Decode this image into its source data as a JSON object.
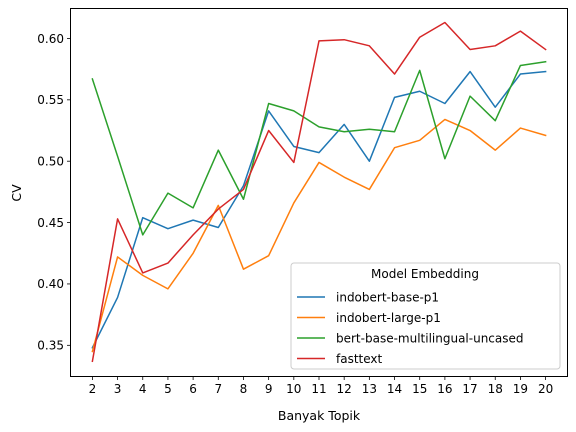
{
  "chart_data": {
    "type": "line",
    "xlabel": "Banyak Topik",
    "ylabel": "CV",
    "x": [
      2,
      3,
      4,
      5,
      6,
      7,
      8,
      9,
      10,
      11,
      12,
      13,
      14,
      15,
      16,
      17,
      18,
      19,
      20
    ],
    "xlim": [
      1.15,
      20.85
    ],
    "ylim": [
      0.325,
      0.624
    ],
    "yticks": [
      0.35,
      0.4,
      0.45,
      0.5,
      0.55,
      0.6
    ],
    "ytick_labels": [
      "0.35",
      "0.40",
      "0.45",
      "0.50",
      "0.55",
      "0.60"
    ],
    "grid": false,
    "legend": {
      "title": "Model Embedding",
      "position": "lower-right"
    },
    "series": [
      {
        "name": "indobert-base-p1",
        "color": "#1f77b4",
        "values": [
          0.348,
          0.389,
          0.454,
          0.445,
          0.452,
          0.446,
          0.48,
          0.541,
          0.512,
          0.507,
          0.53,
          0.5,
          0.552,
          0.557,
          0.547,
          0.573,
          0.544,
          0.571,
          0.573
        ]
      },
      {
        "name": "indobert-large-p1",
        "color": "#ff7f0e",
        "values": [
          0.345,
          0.422,
          0.407,
          0.396,
          0.425,
          0.464,
          0.412,
          0.423,
          0.466,
          0.499,
          0.487,
          0.477,
          0.511,
          0.517,
          0.534,
          0.525,
          0.509,
          0.527,
          0.521
        ]
      },
      {
        "name": "bert-base-multilingual-uncased",
        "color": "#2ca02c",
        "values": [
          0.567,
          0.504,
          0.44,
          0.474,
          0.462,
          0.509,
          0.469,
          0.547,
          0.541,
          0.528,
          0.524,
          0.526,
          0.524,
          0.574,
          0.502,
          0.553,
          0.533,
          0.578,
          0.581
        ]
      },
      {
        "name": "fasttext",
        "color": "#d62728",
        "values": [
          0.337,
          0.453,
          0.409,
          0.417,
          0.44,
          0.461,
          0.477,
          0.525,
          0.499,
          0.598,
          0.599,
          0.594,
          0.571,
          0.601,
          0.613,
          0.591,
          0.594,
          0.606,
          0.591
        ]
      }
    ]
  }
}
